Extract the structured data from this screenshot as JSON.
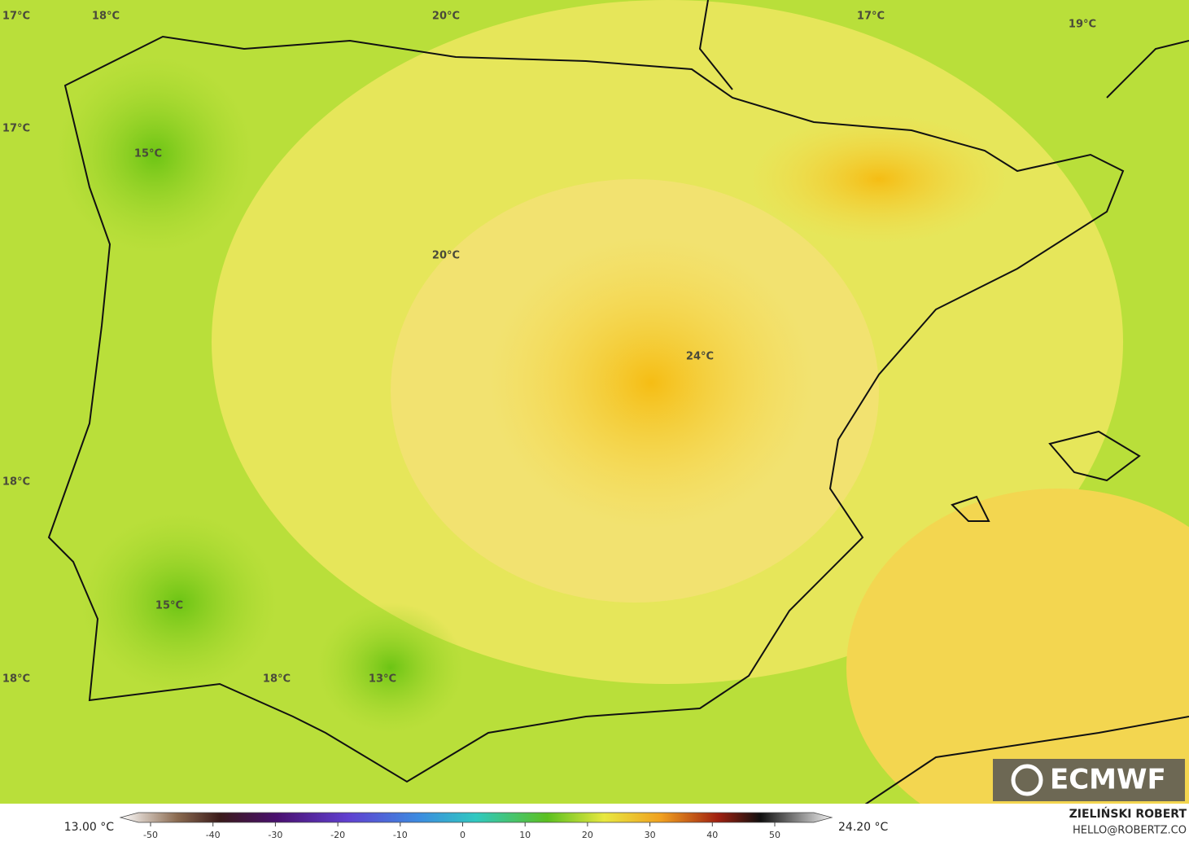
{
  "map": {
    "labels": [
      "17°C",
      "18°C",
      "20°C",
      "17°C",
      "19°C",
      "17°C",
      "15°C",
      "20°C",
      "24°C",
      "18°C",
      "15°C",
      "18°C",
      "18°C",
      "13°C"
    ]
  },
  "legend": {
    "min_label": "13.00 °C",
    "max_label": "24.20 °C",
    "ticks": [
      -50,
      -40,
      -30,
      -20,
      -10,
      0,
      10,
      20,
      30,
      40,
      50
    ]
  },
  "logo": "ECMWF",
  "credit": {
    "author": "ZIELIŃSKI ROBERT",
    "email": "HELLO@ROBERTZ.CO"
  }
}
